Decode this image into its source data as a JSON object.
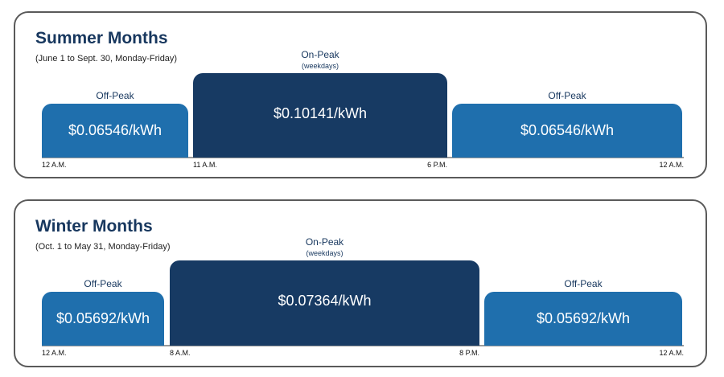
{
  "panels": [
    {
      "title": "Summer Months",
      "subtitle": "(June 1 to Sept. 30, Monday-Friday)",
      "periods": [
        {
          "label": "Off-Peak",
          "rate": "$0.06546/kWh"
        },
        {
          "label": "On-Peak",
          "sublabel": "(weekdays)",
          "rate": "$0.10141/kWh"
        },
        {
          "label": "Off-Peak",
          "rate": "$0.06546/kWh"
        }
      ],
      "times": [
        "12 A.M.",
        "11 A.M.",
        "6 P.M.",
        "12 A.M."
      ]
    },
    {
      "title": "Winter Months",
      "subtitle": "(Oct. 1 to May 31, Monday-Friday)",
      "periods": [
        {
          "label": "Off-Peak",
          "rate": "$0.05692/kWh"
        },
        {
          "label": "On-Peak",
          "sublabel": "(weekdays)",
          "rate": "$0.07364/kWh"
        },
        {
          "label": "Off-Peak",
          "rate": "$0.05692/kWh"
        }
      ],
      "times": [
        "12 A.M.",
        "8 A.M.",
        "8 P.M.",
        "12 A.M."
      ]
    }
  ]
}
